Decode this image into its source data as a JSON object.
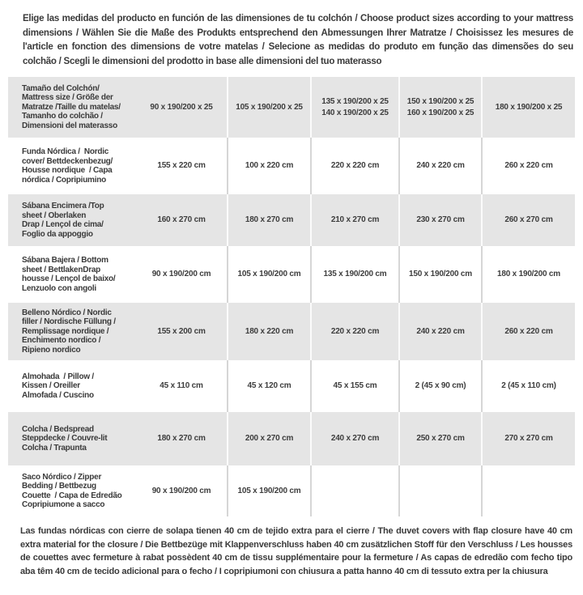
{
  "intro": {
    "text": "Elige las medidas del producto en función de las dimensiones de tu colchón / Choose product sizes according to your mattress dimensions / Wählen Sie die Maße des Produkts entsprechend den Abmessungen Ihrer Matratze / Choisissez les mesures de l'article en fonction des dimensions de votre matelas / Selecione as medidas do produto em função das dimensões do seu colchão / Scegli le dimensioni del prodotto in base alle dimensioni del tuo materasso"
  },
  "colors": {
    "row_alt_gray": "#e5e5e5",
    "text": "#3c3c3c",
    "separator_on_white": "#d6d6d6",
    "separator_on_gray": "#fbfbfb"
  },
  "table": {
    "rows": [
      {
        "label": "Tamaño del Colchón/\nMattress size / Größe der\nMatratze /Taille du matelas/\nTamanho do colchão /\nDimensioni del materasso",
        "values": [
          "90 x 190/200 x 25",
          "105 x 190/200 x 25",
          "135 x 190/200 x 25\n140 x 190/200 x 25",
          "150 x 190/200 x 25\n160 x 190/200 x 25",
          "180 x 190/200 x 25"
        ]
      },
      {
        "label": "Funda Nórdica /  Nordic\ncover/ Bettdeckenbezug/\nHousse nordique  / Capa\nnórdica / Copripiumino",
        "values": [
          "155 x 220 cm",
          "100 x 220 cm",
          "220 x 220 cm",
          "240 x 220 cm",
          "260 x 220 cm"
        ]
      },
      {
        "label": "Sábana Encimera /Top\nsheet / Oberlaken\nDrap / Lençol de cima/\nFoglio da appoggio",
        "values": [
          "160 x 270 cm",
          "180 x 270 cm",
          "210 x 270 cm",
          "230 x 270 cm",
          "260 x 270 cm"
        ]
      },
      {
        "label": "Sábana Bajera / Bottom\nsheet / BettlakenDrap\nhousse / Lençol de baixo/\nLenzuolo con angoli",
        "values": [
          "90 x 190/200 cm",
          "105 x 190/200 cm",
          "135 x 190/200 cm",
          "150 x 190/200 cm",
          "180 x 190/200 cm"
        ]
      },
      {
        "label": "Belleno Nórdico / Nordic\nfiller / Nordische Füllung /\nRemplissage nordique /\nEnchimento nordico /\nRipieno nordico",
        "values": [
          "155 x 200 cm",
          "180 x 220 cm",
          "220 x 220 cm",
          "240 x 220 cm",
          "260 x 220 cm"
        ]
      },
      {
        "label": "Almohada  / Pillow /\nKissen / Oreiller\nAlmofada / Cuscino",
        "values": [
          "45 x 110 cm",
          "45 x 120 cm",
          "45 x 155 cm",
          "2 (45 x 90 cm)",
          "2 (45 x 110 cm)"
        ]
      },
      {
        "label": "Colcha / Bedspread\nSteppdecke / Couvre-lit\nColcha / Trapunta",
        "values": [
          "180 x 270 cm",
          "200 x 270 cm",
          "240 x 270 cm",
          "250 x 270 cm",
          "270 x 270 cm"
        ]
      },
      {
        "label": "Saco Nórdico / Zipper\nBedding / Bettbezug\nCouette  / Capa de Edredão\nCopripiumone a sacco",
        "values": [
          "90 x 190/200 cm",
          "105 x 190/200 cm",
          "",
          "",
          ""
        ]
      }
    ]
  },
  "note": {
    "text": "Las fundas nórdicas con cierre de solapa tienen 40 cm de tejido extra para el cierre  / The duvet covers with flap closure have 40 cm extra material for the closure / Die Bettbezüge mit Klappenverschluss haben 40 cm zusätzlichen Stoff für den Verschluss / Les housses de couettes avec fermeture à rabat possèdent 40 cm de tissu supplémentaire pour la fermeture / As capas de edredão com fecho tipo aba têm 40 cm de tecido adicional para o fecho / I copripiumoni con chiusura a patta hanno 40 cm di tessuto extra per la chiusura"
  }
}
